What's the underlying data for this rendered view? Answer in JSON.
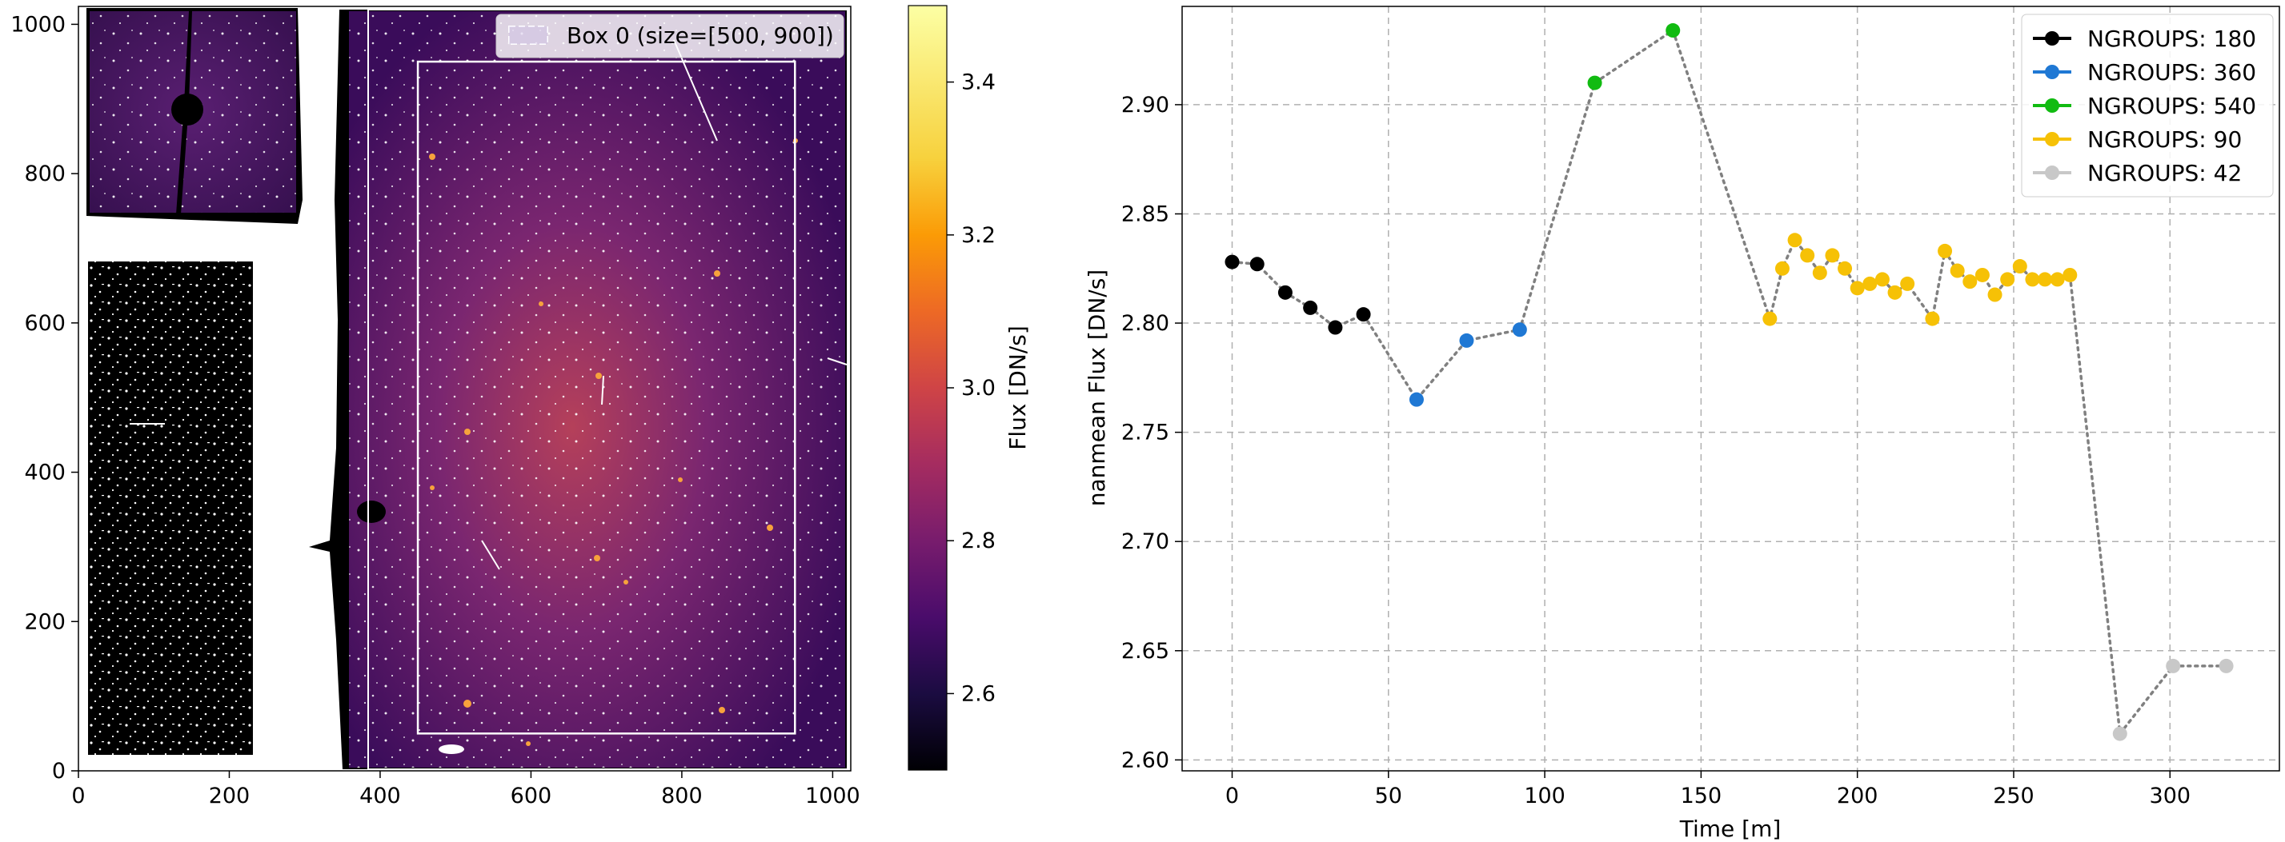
{
  "chart_data": [
    {
      "type": "heatmap",
      "xlim": [
        0,
        1024
      ],
      "ylim": [
        0,
        1024
      ],
      "xticks": [
        "0",
        "200",
        "400",
        "600",
        "800",
        "1000"
      ],
      "yticks": [
        "0",
        "200",
        "400",
        "600",
        "800",
        "1000"
      ],
      "colorbar": {
        "label": "Flux [DN/s]",
        "range": [
          2.5,
          3.5
        ],
        "ticks": [
          "2.6",
          "2.8",
          "3.0",
          "3.2",
          "3.4"
        ],
        "colormap": "inferno"
      },
      "legend": {
        "position": "top-right",
        "entries": [
          "Box 0 (size=[500, 900])"
        ]
      },
      "box": {
        "x_range": [
          450,
          950
        ],
        "y_range": [
          50,
          950
        ]
      },
      "colors": {
        "background_low": "#2f0a52",
        "center_high": "#b5405a",
        "masked": "#000000",
        "box_edge": "#ffffff"
      }
    },
    {
      "type": "line",
      "xlabel": "Time [m]",
      "ylabel": "nanmean Flux [DN/s]",
      "xlim": [
        -16,
        335
      ],
      "ylim": [
        2.595,
        2.945
      ],
      "xticks": [
        "0",
        "50",
        "100",
        "150",
        "200",
        "250",
        "300"
      ],
      "yticks": [
        "2.60",
        "2.65",
        "2.70",
        "2.75",
        "2.80",
        "2.85",
        "2.90"
      ],
      "grid": true,
      "legend_position": "top-right",
      "connector": {
        "style": "dotted",
        "color": "#808080"
      },
      "series": [
        {
          "name": "NGROUPS: 180",
          "color": "#000000",
          "x": [
            0,
            8,
            17,
            25,
            33,
            42
          ],
          "y": [
            2.828,
            2.827,
            2.814,
            2.807,
            2.798,
            2.804
          ]
        },
        {
          "name": "NGROUPS: 360",
          "color": "#1f78d4",
          "x": [
            59,
            75,
            92
          ],
          "y": [
            2.765,
            2.792,
            2.797
          ]
        },
        {
          "name": "NGROUPS: 540",
          "color": "#11bb11",
          "x": [
            116,
            141
          ],
          "y": [
            2.91,
            2.934
          ]
        },
        {
          "name": "NGROUPS: 90",
          "color": "#f6c106",
          "x": [
            172,
            176,
            180,
            184,
            188,
            192,
            196,
            200,
            204,
            208,
            212,
            216,
            224,
            228,
            232,
            236,
            240,
            244,
            248,
            252,
            256,
            260,
            264,
            268
          ],
          "y": [
            2.802,
            2.825,
            2.838,
            2.831,
            2.823,
            2.831,
            2.825,
            2.816,
            2.818,
            2.82,
            2.814,
            2.818,
            2.802,
            2.833,
            2.824,
            2.819,
            2.822,
            2.813,
            2.82,
            2.826,
            2.82,
            2.82,
            2.82,
            2.822
          ]
        },
        {
          "name": "NGROUPS: 42",
          "color": "#c8c8c8",
          "x": [
            284,
            301,
            318
          ],
          "y": [
            2.612,
            2.643,
            2.643
          ]
        }
      ]
    }
  ]
}
